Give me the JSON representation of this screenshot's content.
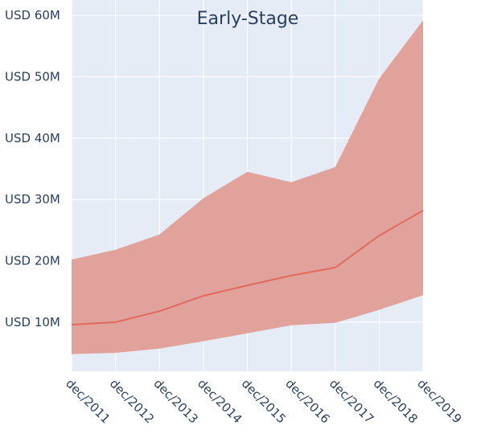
{
  "chart_data": {
    "type": "area",
    "title": "Early-Stage",
    "xlabel": "",
    "ylabel": "",
    "categories": [
      "dec/2011",
      "dec/2012",
      "dec/2013",
      "dec/2014",
      "dec/2015",
      "dec/2016",
      "dec/2017",
      "dec/2018",
      "dec/2019"
    ],
    "y_ticks": [
      10,
      20,
      30,
      40,
      50,
      60
    ],
    "y_tick_labels": [
      "USD 10M",
      "USD 20M",
      "USD 30M",
      "USD 40M",
      "USD 50M",
      "USD 60M"
    ],
    "ylim": [
      2.0,
      62.5
    ],
    "y_unit": "USD M",
    "grid": true,
    "series": [
      {
        "role": "upper",
        "values": [
          20.2,
          21.8,
          24.3,
          30.2,
          34.5,
          32.8,
          35.3,
          49.7,
          59.2
        ]
      },
      {
        "role": "median",
        "values": [
          9.6,
          10.0,
          11.8,
          14.3,
          16.0,
          17.6,
          18.9,
          24.1,
          28.2
        ]
      },
      {
        "role": "lower",
        "values": [
          4.8,
          5.0,
          5.7,
          6.9,
          8.2,
          9.5,
          9.9,
          12.0,
          14.4
        ]
      }
    ],
    "colors": {
      "band": "#e2a29c",
      "line": "#e06a5f",
      "plot_background": "#e5ecf6",
      "grid": "#ffffff",
      "text": "#2a3f5f"
    }
  }
}
